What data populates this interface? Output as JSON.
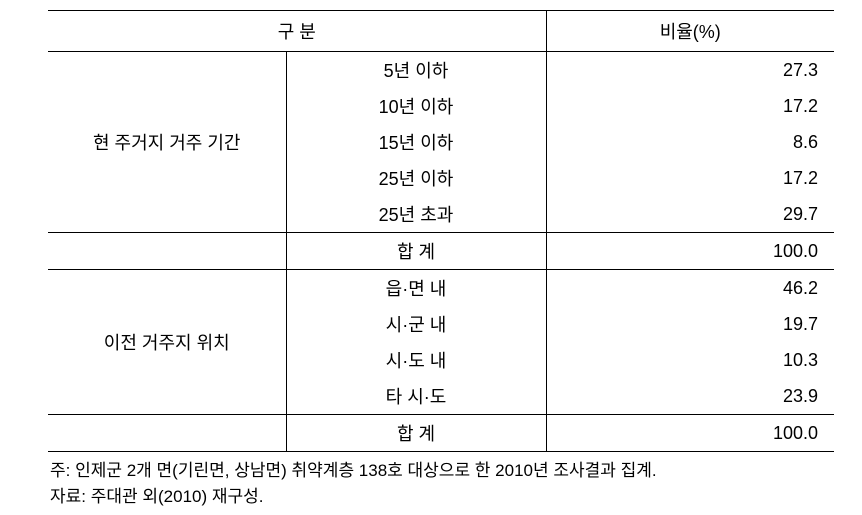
{
  "table": {
    "headers": {
      "category": "구  분",
      "ratio": "비율(%)"
    },
    "section1": {
      "label": "현 주거지 거주 기간",
      "rows": [
        {
          "label": "5년 이하",
          "value": "27.3"
        },
        {
          "label": "10년 이하",
          "value": "17.2"
        },
        {
          "label": "15년 이하",
          "value": "8.6"
        },
        {
          "label": "25년 이하",
          "value": "17.2"
        },
        {
          "label": "25년 초과",
          "value": "29.7"
        }
      ],
      "subtotal": {
        "label": "합   계",
        "value": "100.0"
      }
    },
    "section2": {
      "label": "이전 거주지 위치",
      "rows": [
        {
          "label": "읍·면 내",
          "value": "46.2"
        },
        {
          "label": "시·군 내",
          "value": "19.7"
        },
        {
          "label": "시·도 내",
          "value": "10.3"
        },
        {
          "label": "타 시·도",
          "value": "23.9"
        }
      ],
      "subtotal": {
        "label": "합   계",
        "value": "100.0"
      }
    }
  },
  "notes": {
    "line1": "주: 인제군 2개 면(기린면, 상남면) 취약계층 138호 대상으로 한 2010년 조사결과 집계.",
    "line2": "자료: 주대관 외(2010) 재구성."
  }
}
